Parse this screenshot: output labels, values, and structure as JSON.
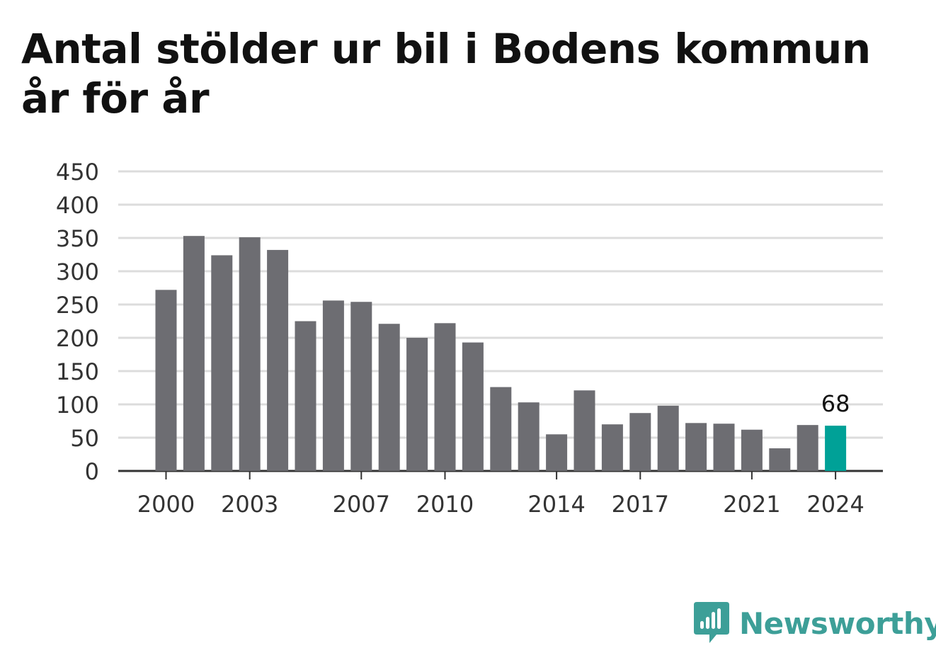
{
  "chart_data": {
    "type": "bar",
    "title": "Antal stölder ur bil i Bodens kommun år för år",
    "xlabel": "",
    "ylabel": "",
    "categories": [
      2000,
      2001,
      2002,
      2003,
      2004,
      2005,
      2006,
      2007,
      2008,
      2009,
      2010,
      2011,
      2012,
      2013,
      2014,
      2015,
      2016,
      2017,
      2018,
      2019,
      2020,
      2021,
      2022,
      2023,
      2024
    ],
    "values": [
      272,
      353,
      324,
      351,
      332,
      225,
      256,
      254,
      221,
      200,
      222,
      193,
      126,
      103,
      55,
      121,
      70,
      87,
      98,
      72,
      71,
      62,
      34,
      69,
      68
    ],
    "x_tick_labels": [
      "2000",
      "2003",
      "2007",
      "2010",
      "2014",
      "2017",
      "2021",
      "2024"
    ],
    "y_ticks": [
      0,
      50,
      100,
      150,
      200,
      250,
      300,
      350,
      400,
      450
    ],
    "ylim": [
      0,
      450
    ],
    "grid": true,
    "highlight_category": 2024,
    "highlight_label": "68",
    "colors": {
      "bar": "#6d6d72",
      "highlight": "#00a197",
      "grid": "#dcdcdc",
      "axis": "#333333"
    }
  },
  "brand": {
    "name": "Newsworthy",
    "icon": "bar-chart-speech-bubble-icon",
    "color": "#3d9f98"
  }
}
